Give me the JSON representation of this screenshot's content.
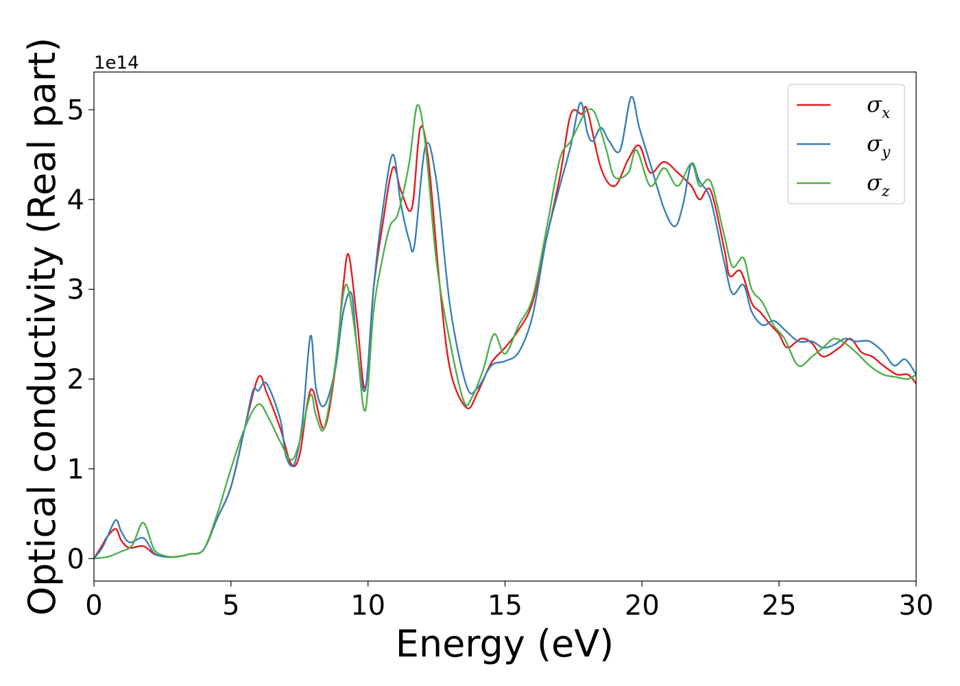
{
  "chart_data": {
    "type": "line",
    "title": "",
    "xlabel": "Energy (eV)",
    "ylabel": "Optical conductivity (Real part)",
    "y_offset_label": "1e14",
    "xlim": [
      0,
      30
    ],
    "ylim": [
      -0.25,
      5.42
    ],
    "xticks": [
      0,
      5,
      10,
      15,
      20,
      25,
      30
    ],
    "yticks": [
      0,
      1,
      2,
      3,
      4,
      5
    ],
    "grid": false,
    "legend_position": "upper-right",
    "series": [
      {
        "name": "σx",
        "symbol": "σ",
        "subscript": "x",
        "color": "#e41a1c",
        "x": [
          0,
          0.3,
          0.5,
          0.8,
          1.0,
          1.3,
          1.8,
          2.2,
          2.6,
          3.0,
          3.5,
          4.0,
          4.5,
          5.0,
          5.5,
          6.0,
          6.3,
          6.8,
          7.2,
          7.5,
          7.8,
          8.0,
          8.4,
          8.8,
          9.1,
          9.3,
          9.6,
          9.9,
          10.2,
          10.5,
          10.9,
          11.2,
          11.6,
          11.9,
          12.2,
          12.6,
          13.0,
          13.6,
          14.0,
          14.5,
          15.0,
          15.5,
          16.0,
          16.5,
          17.0,
          17.4,
          17.8,
          18.0,
          18.5,
          19.0,
          19.5,
          19.9,
          20.3,
          20.8,
          21.3,
          21.8,
          22.1,
          22.5,
          23.0,
          23.2,
          23.6,
          24.0,
          24.3,
          24.7,
          25.0,
          25.3,
          25.8,
          26.2,
          26.6,
          27.2,
          27.6,
          28.0,
          28.4,
          28.8,
          29.3,
          29.7,
          30.0
        ],
        "y": [
          0.0,
          0.15,
          0.25,
          0.33,
          0.2,
          0.12,
          0.14,
          0.05,
          0.02,
          0.02,
          0.05,
          0.1,
          0.45,
          0.8,
          1.45,
          2.02,
          1.85,
          1.45,
          1.05,
          1.15,
          1.75,
          1.87,
          1.45,
          2.1,
          3.05,
          3.38,
          2.65,
          1.9,
          3.0,
          3.65,
          4.35,
          4.1,
          3.9,
          4.79,
          4.45,
          3.1,
          2.1,
          1.68,
          1.85,
          2.18,
          2.35,
          2.55,
          2.85,
          3.55,
          4.25,
          4.95,
          4.95,
          5.0,
          4.35,
          4.15,
          4.45,
          4.6,
          4.3,
          4.42,
          4.3,
          4.15,
          4.0,
          4.1,
          3.45,
          3.15,
          3.2,
          2.85,
          2.75,
          2.6,
          2.5,
          2.35,
          2.45,
          2.4,
          2.25,
          2.35,
          2.45,
          2.3,
          2.25,
          2.15,
          2.05,
          2.05,
          1.95
        ]
      },
      {
        "name": "σy",
        "symbol": "σ",
        "subscript": "y",
        "color": "#377eb8",
        "x": [
          0,
          0.3,
          0.5,
          0.8,
          1.0,
          1.3,
          1.8,
          2.2,
          2.6,
          3.0,
          3.5,
          4.0,
          4.5,
          5.0,
          5.5,
          5.8,
          6.0,
          6.3,
          6.8,
          7.0,
          7.3,
          7.6,
          7.9,
          8.1,
          8.4,
          8.8,
          9.1,
          9.4,
          9.6,
          9.9,
          10.2,
          10.5,
          10.9,
          11.2,
          11.5,
          11.7,
          12.1,
          12.5,
          13.0,
          13.6,
          14.0,
          14.5,
          15.0,
          15.5,
          16.0,
          16.5,
          17.0,
          17.4,
          17.75,
          18.0,
          18.2,
          18.5,
          18.8,
          19.2,
          19.6,
          19.9,
          20.3,
          20.8,
          21.2,
          21.5,
          21.8,
          22.1,
          22.5,
          23.0,
          23.3,
          23.7,
          24.0,
          24.4,
          24.8,
          25.2,
          25.7,
          26.2,
          26.6,
          27.0,
          27.4,
          27.8,
          28.3,
          28.8,
          29.2,
          29.6,
          30.0
        ],
        "y": [
          0.0,
          0.12,
          0.25,
          0.43,
          0.3,
          0.18,
          0.23,
          0.06,
          0.02,
          0.02,
          0.05,
          0.1,
          0.45,
          0.8,
          1.45,
          1.87,
          1.87,
          1.95,
          1.55,
          1.15,
          1.05,
          1.5,
          2.48,
          1.9,
          1.7,
          2.1,
          2.75,
          2.95,
          2.35,
          1.88,
          3.0,
          3.8,
          4.5,
          3.95,
          3.55,
          3.5,
          4.6,
          4.2,
          2.8,
          1.92,
          1.9,
          2.15,
          2.2,
          2.3,
          2.7,
          3.55,
          4.15,
          4.6,
          5.08,
          4.75,
          4.65,
          4.8,
          4.65,
          4.55,
          5.14,
          4.8,
          4.4,
          3.9,
          3.7,
          3.95,
          4.4,
          4.2,
          4.0,
          3.3,
          2.95,
          3.05,
          2.75,
          2.6,
          2.65,
          2.55,
          2.42,
          2.42,
          2.35,
          2.38,
          2.45,
          2.42,
          2.42,
          2.3,
          2.15,
          2.22,
          2.05
        ]
      },
      {
        "name": "σz",
        "symbol": "σ",
        "subscript": "z",
        "color": "#4daf4a",
        "x": [
          0,
          0.5,
          1.0,
          1.4,
          1.8,
          2.2,
          2.6,
          3.0,
          3.5,
          4.0,
          4.5,
          5.0,
          5.5,
          6.0,
          6.4,
          6.8,
          7.2,
          7.5,
          7.9,
          8.1,
          8.4,
          8.8,
          9.1,
          9.3,
          9.6,
          9.9,
          10.2,
          10.5,
          10.8,
          11.1,
          11.5,
          11.8,
          12.1,
          12.5,
          13.0,
          13.5,
          13.8,
          14.2,
          14.6,
          15.0,
          15.5,
          16.0,
          16.5,
          17.0,
          17.4,
          17.8,
          18.0,
          18.3,
          18.7,
          19.0,
          19.5,
          19.8,
          20.3,
          20.8,
          21.3,
          21.8,
          22.1,
          22.5,
          23.0,
          23.3,
          23.7,
          24.0,
          24.4,
          24.8,
          25.2,
          25.7,
          26.2,
          26.6,
          27.0,
          27.4,
          27.8,
          28.3,
          28.8,
          29.3,
          29.7,
          30.0
        ],
        "y": [
          0.0,
          0.02,
          0.08,
          0.15,
          0.4,
          0.1,
          0.03,
          0.02,
          0.05,
          0.1,
          0.5,
          1.0,
          1.45,
          1.72,
          1.55,
          1.3,
          1.1,
          1.3,
          1.82,
          1.6,
          1.45,
          2.15,
          2.95,
          2.98,
          2.35,
          1.65,
          2.75,
          3.3,
          3.7,
          3.85,
          4.4,
          5.05,
          4.6,
          3.3,
          2.4,
          1.75,
          1.8,
          2.1,
          2.5,
          2.28,
          2.6,
          2.9,
          3.65,
          4.45,
          4.65,
          4.9,
          5.0,
          4.95,
          4.55,
          4.25,
          4.3,
          4.55,
          4.15,
          4.35,
          4.15,
          4.4,
          4.15,
          4.2,
          3.6,
          3.25,
          3.35,
          3.0,
          2.85,
          2.6,
          2.45,
          2.15,
          2.25,
          2.35,
          2.45,
          2.4,
          2.3,
          2.15,
          2.05,
          2.02,
          2.0,
          2.05
        ]
      }
    ]
  }
}
